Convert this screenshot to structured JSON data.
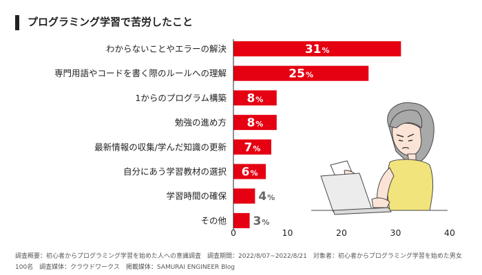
{
  "title": "プログラミング学習で苦労したこと",
  "chart_data": {
    "type": "bar",
    "orientation": "horizontal",
    "categories": [
      "わからないことやエラーの解決",
      "専門用語やコードを書く際のルールへの理解",
      "1からのプログラム構築",
      "勉強の進め方",
      "最新情報の収集/学んだ知識の更新",
      "自分にあう学習教材の選択",
      "学習時間の確保",
      "その他"
    ],
    "values": [
      31,
      25,
      8,
      8,
      7,
      6,
      4,
      3
    ],
    "value_suffix": "%",
    "xlim": [
      0,
      40
    ],
    "xticks": [
      0,
      10,
      20,
      30,
      40
    ],
    "bar_color": "#e50012",
    "grid": false
  },
  "footer": {
    "line1": "調査概要：初心者からプログラミング学習を始めた人への意識調査　調査期間：2022/8/07~2022/8/21　対象者：初心者からプログラミング学習を始めた男女",
    "line2": "100名　調査媒体：クラウドワークス　掲載媒体：SAMURAI ENGINEER Blog"
  },
  "illustration": "woman-at-laptop-frustrated"
}
